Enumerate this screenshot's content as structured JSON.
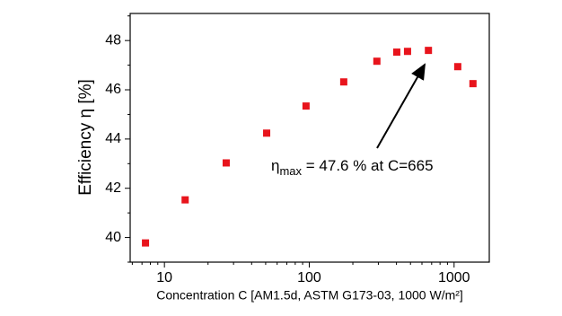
{
  "chart_data": {
    "type": "scatter",
    "xlabel": "Concentration C [AM1.5d, ASTM G173-03, 1000 W/m²]",
    "ylabel": "Efficiency η [%]",
    "annotation": {
      "symbol": "η",
      "subscript": "max",
      "text": " = 47.6 % at C=665"
    },
    "x": [
      7.4,
      13.9,
      26.7,
      50.8,
      95,
      173,
      293,
      402,
      477,
      665,
      1060,
      1350
    ],
    "values": [
      39.78,
      41.53,
      43.03,
      44.24,
      45.34,
      46.32,
      47.16,
      47.53,
      47.56,
      47.6,
      46.94,
      46.25
    ],
    "color": "#e8141c",
    "xscale": "log",
    "xlim": [
      5.8,
      1750
    ],
    "xticks": [
      10,
      100,
      1000
    ],
    "xminorticks": [
      6,
      7,
      8,
      9,
      20,
      30,
      40,
      50,
      60,
      70,
      80,
      90,
      200,
      300,
      400,
      500,
      600,
      700,
      800,
      900
    ],
    "ylim": [
      39,
      49.1
    ],
    "yticks": [
      40,
      42,
      44,
      46,
      48
    ],
    "yminorticks": [
      39,
      41,
      43,
      45,
      47,
      49
    ]
  }
}
